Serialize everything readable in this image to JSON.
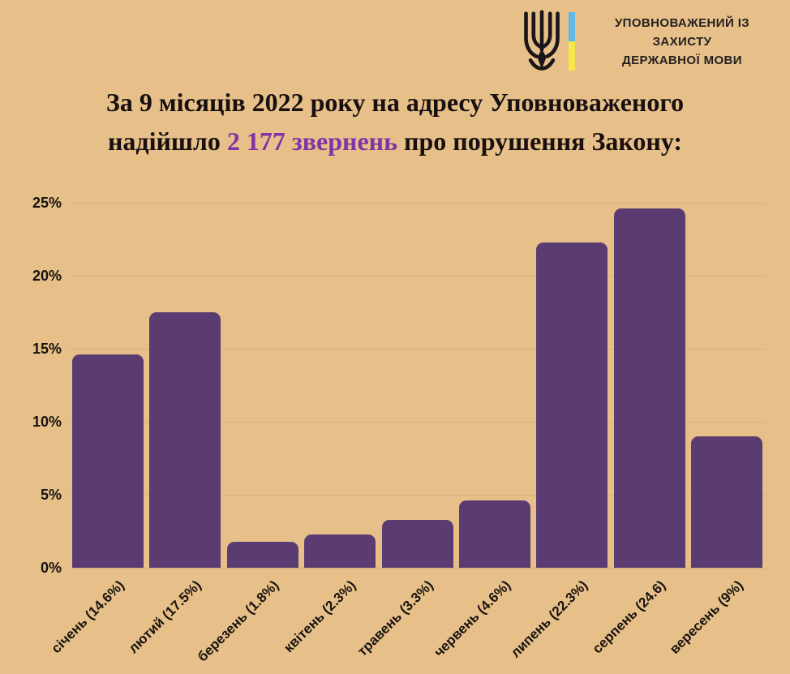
{
  "page": {
    "background": "#e7c089"
  },
  "header": {
    "org_name_line1": "УПОВНОВАЖЕНИЙ ІЗ ЗАХИСТУ",
    "org_name_line2": "ДЕРЖАВНОЇ МОВИ",
    "flag_blue": "#5fb8e6",
    "flag_yellow": "#f6e649",
    "trident_color": "#1a1617"
  },
  "title": {
    "line1": "За 9 місяців 2022 року на адресу Уповноваженого",
    "line2_pre": "надійшло",
    "line2_highlight": "2 177 звернень",
    "line2_post": "про порушення Закону:",
    "highlight_color": "#8233a4",
    "text_color": "#170f10"
  },
  "chart_data": {
    "type": "bar",
    "title": "",
    "xlabel": "",
    "ylabel": "",
    "categories": [
      "січень (14.6%)",
      "лютий (17.5%)",
      "березень (1.8%)",
      "квітень (2.3%)",
      "травень (3.3%)",
      "червень (4.6%)",
      "липень (22.3%)",
      "серпень (24.6)",
      "вересень (9%)"
    ],
    "values": [
      14.6,
      17.5,
      1.8,
      2.3,
      3.3,
      4.6,
      22.3,
      24.6,
      9
    ],
    "unit": "%",
    "total_appeals_in_title": "2 177",
    "ylim": [
      0,
      25
    ],
    "yticks": [
      0,
      5,
      10,
      15,
      20,
      25
    ],
    "ytick_labels": [
      "0%",
      "5%",
      "10%",
      "15%",
      "20%",
      "25%"
    ],
    "grid": true,
    "legend": "none",
    "bar_color": "#5b3c72",
    "gridline_color": "#d9b179",
    "axis_label_color": "#18120f"
  }
}
